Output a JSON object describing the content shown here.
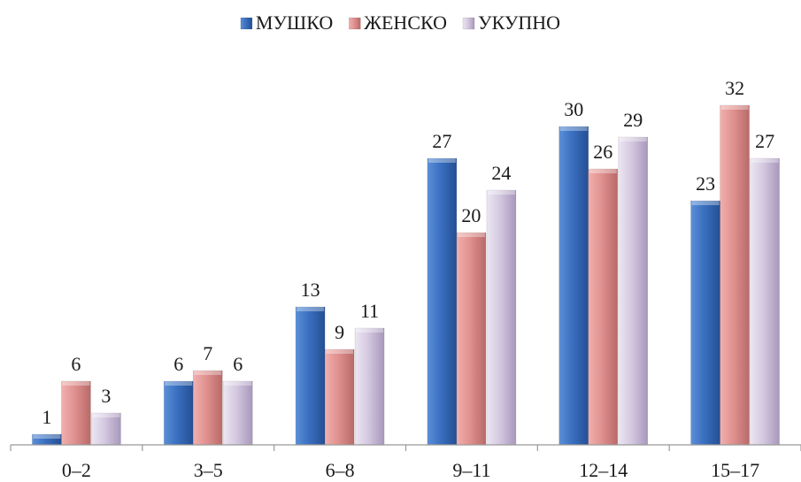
{
  "chart_data": {
    "type": "bar",
    "title": "",
    "xlabel": "",
    "ylabel": "",
    "categories": [
      "0–2",
      "3–5",
      "6–8",
      "9–11",
      "12–14",
      "15–17"
    ],
    "series": [
      {
        "name": "МУШКО",
        "values": [
          1,
          6,
          13,
          27,
          30,
          23
        ],
        "color": "#3a6fc0"
      },
      {
        "name": "ЖЕНСКО",
        "values": [
          6,
          7,
          9,
          20,
          26,
          32
        ],
        "color": "#e0918f"
      },
      {
        "name": "УКУПНО",
        "values": [
          3,
          6,
          11,
          24,
          29,
          27
        ],
        "color": "#d4c8e0"
      }
    ],
    "ylim": [
      0,
      34
    ],
    "legend_position": "top-center",
    "data_labels": true,
    "grid": false
  }
}
